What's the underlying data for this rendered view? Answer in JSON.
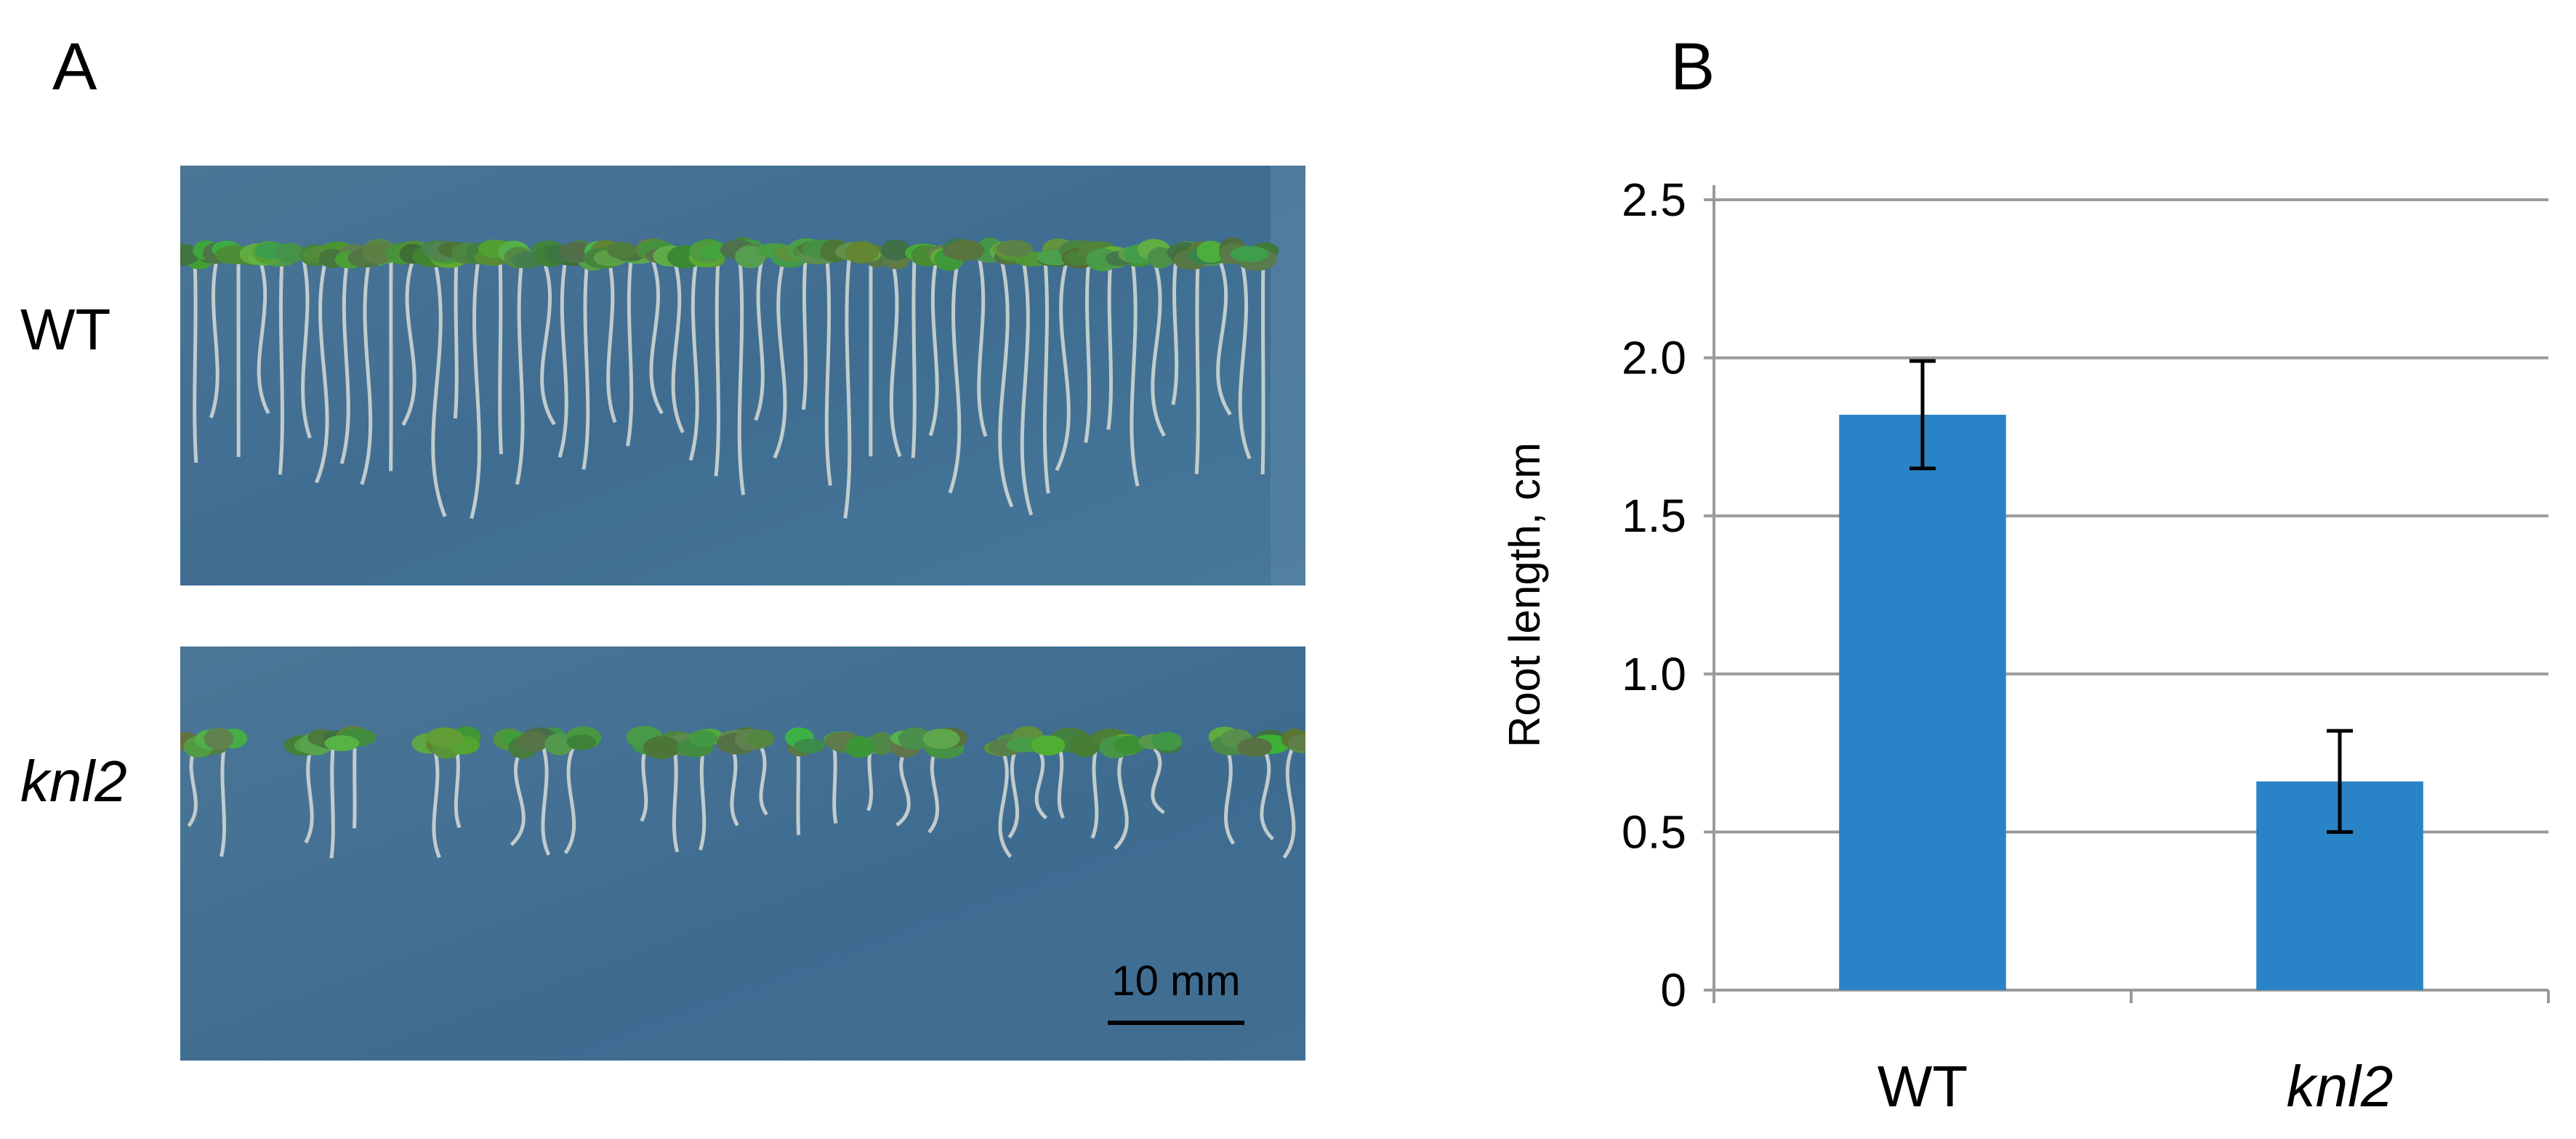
{
  "panel_a": {
    "letter": "A",
    "rows": [
      {
        "label": "WT",
        "italic": false
      },
      {
        "label": "knl2",
        "italic": true
      }
    ],
    "scale_bar_label": "10 mm"
  },
  "panel_b": {
    "letter": "B"
  },
  "chart_data": {
    "type": "bar",
    "categories": [
      "WT",
      "knl2"
    ],
    "categories_italic": [
      false,
      true
    ],
    "values": [
      1.82,
      0.66
    ],
    "error": [
      0.17,
      0.16
    ],
    "ylabel": "Root length, cm",
    "xlabel": "",
    "ylim": [
      0,
      2.5
    ],
    "yticks": [
      0,
      0.5,
      1.0,
      1.5,
      2.0,
      2.5
    ],
    "ytick_labels": [
      "0",
      "0.5",
      "1.0",
      "1.5",
      "2.0",
      "2.5"
    ],
    "grid": true,
    "bar_color": "#2a83c6",
    "grid_color": "#9a9a9a"
  }
}
